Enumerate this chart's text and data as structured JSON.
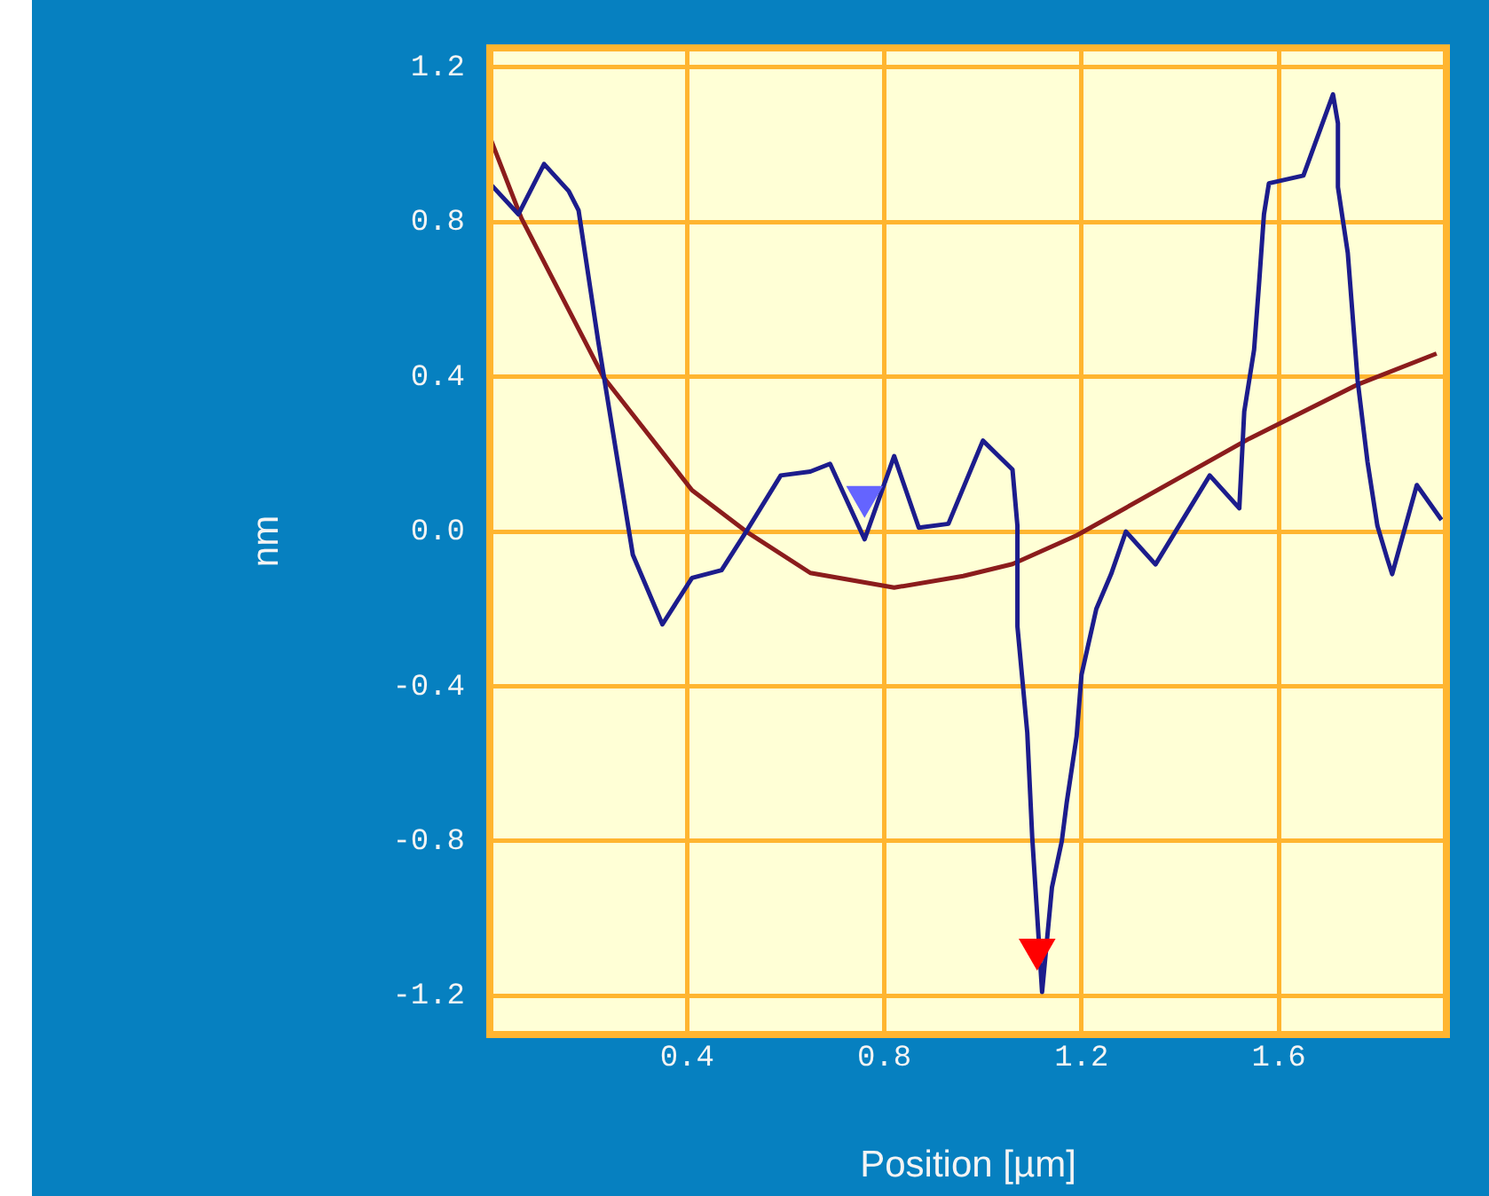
{
  "chart_data": {
    "type": "line",
    "xlabel": "Position [µm]",
    "ylabel": "nm",
    "xlim": [
      0,
      1.94
    ],
    "ylim": [
      -1.3,
      1.25
    ],
    "xticks": [
      0.4,
      0.8,
      1.2,
      1.6
    ],
    "yticks": [
      -1.2,
      -0.8,
      -0.4,
      {
        "value": 0,
        "label": "0.0"
      },
      0.4,
      0.8,
      1.2
    ],
    "grid": true,
    "marker": "none",
    "line_style": "solid",
    "series": [
      {
        "color": "#1c1c8c",
        "x": [
          0,
          0.058,
          0.11,
          0.16,
          0.18,
          0.22,
          0.29,
          0.35,
          0.41,
          0.47,
          0.52,
          0.59,
          0.65,
          0.69,
          0.76,
          0.82,
          0.87,
          0.93,
          1.0,
          1.06,
          1.07,
          1.07,
          1.09,
          1.1,
          1.12,
          1.14,
          1.16,
          1.17,
          1.19,
          1.2,
          1.23,
          1.26,
          1.29,
          1.35,
          1.46,
          1.52,
          1.53,
          1.55,
          1.56,
          1.57,
          1.58,
          1.65,
          1.67,
          1.71,
          1.72,
          1.72,
          1.74,
          1.76,
          1.78,
          1.8,
          1.82,
          1.83,
          1.88,
          1.93
        ],
        "values": [
          0.9,
          0.82,
          0.95,
          0.88,
          0.83,
          0.49,
          -0.06,
          -0.24,
          -0.12,
          -0.1,
          0.0,
          0.145,
          0.155,
          0.175,
          -0.02,
          0.195,
          0.01,
          0.02,
          0.235,
          0.16,
          0.015,
          -0.245,
          -0.52,
          -0.79,
          -1.19,
          -0.92,
          -0.8,
          -0.7,
          -0.53,
          -0.37,
          -0.2,
          -0.11,
          0.0,
          -0.085,
          0.145,
          0.06,
          0.31,
          0.47,
          0.64,
          0.82,
          0.9,
          0.92,
          0.99,
          1.13,
          1.055,
          0.89,
          0.72,
          0.39,
          0.18,
          0.015,
          -0.07,
          -0.11,
          0.12,
          0.03
        ]
      },
      {
        "color": "#8b1c1c",
        "x": [
          0,
          0.064,
          0.23,
          0.41,
          0.52,
          0.65,
          0.82,
          0.96,
          1.06,
          1.19,
          1.54,
          1.76,
          1.92
        ],
        "values": [
          1.02,
          0.81,
          0.4,
          0.107,
          0.0,
          -0.107,
          -0.145,
          -0.115,
          -0.084,
          -0.01,
          0.24,
          0.38,
          0.46
        ]
      },
      {
        "type": "scatter",
        "marker": "triangle",
        "color": "#6464ff",
        "x": [
          0.76
        ],
        "values": [
          0.09
        ]
      },
      {
        "type": "scatter",
        "marker": "triangle",
        "color": "#ff0000",
        "x": [
          1.11
        ],
        "values": [
          -1.08
        ]
      }
    ]
  }
}
